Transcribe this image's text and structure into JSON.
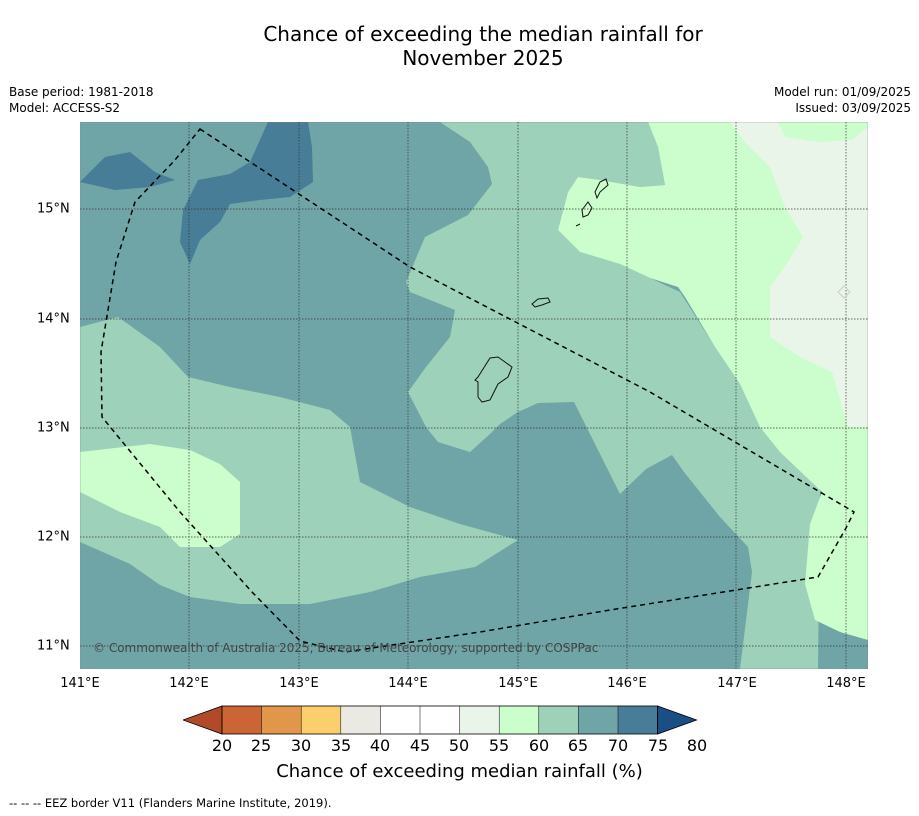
{
  "title_line1": "Chance of exceeding the median rainfall for",
  "title_line2": "November 2025",
  "meta": {
    "base_period": "Base period: 1981-2018",
    "model": "Model: ACCESS-S2",
    "model_run": "Model run: 01/09/2025",
    "issued": "Issued: 03/09/2025"
  },
  "x_ticks": [
    "141°E",
    "142°E",
    "143°E",
    "144°E",
    "145°E",
    "146°E",
    "147°E",
    "148°E"
  ],
  "y_ticks": [
    "15°N",
    "14°N",
    "13°N",
    "12°N",
    "11°N"
  ],
  "copyright": "© Commonwealth of Australia 2025, Bureau of Meteorology, supported by COSPPac",
  "colorbar": {
    "ticks": [
      "20",
      "25",
      "30",
      "35",
      "40",
      "45",
      "50",
      "55",
      "60",
      "65",
      "70",
      "75",
      "80"
    ],
    "colors": [
      "#b04a2a",
      "#cc6535",
      "#e1964c",
      "#fccf6e",
      "#ebe9e3",
      "#ffffff",
      "#ffffff",
      "#eaf5ea",
      "#ccfdcc",
      "#9dd1b9",
      "#6fa5a7",
      "#477d96",
      "#1a4f85"
    ],
    "label": "Chance of exceeding median rainfall (%)"
  },
  "footnote": "--  --  -- EEZ border V11 (Flanders Marine Institute, 2019)."
}
